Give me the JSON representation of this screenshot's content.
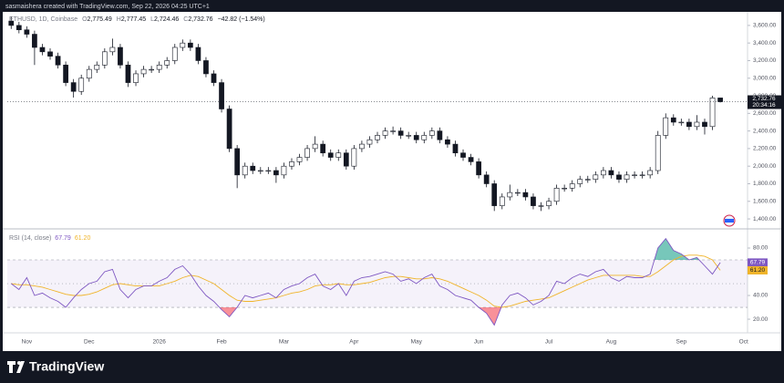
{
  "header": {
    "credit": "sasmaishera created with TradingView.com, Sep 22, 2026 04:25 UTC+1"
  },
  "chart_data": [
    {
      "type": "candlestick",
      "symbol": "ETHUSD, 1D, Coinbase",
      "legend": [
        {
          "key": "O",
          "value": "2,775.49"
        },
        {
          "key": "H",
          "value": "2,777.45"
        },
        {
          "key": "L",
          "value": "2,724.46"
        },
        {
          "key": "C",
          "value": "2,732.76"
        }
      ],
      "change": "−42.82 (−1.54%)",
      "categories": [
        null,
        null,
        "Nov",
        null,
        null,
        null,
        null,
        null,
        null,
        null,
        "Dec",
        null,
        null,
        null,
        null,
        null,
        null,
        null,
        null,
        "2026",
        null,
        null,
        null,
        null,
        null,
        null,
        null,
        "Feb",
        null,
        null,
        null,
        null,
        null,
        null,
        null,
        "Mar",
        null,
        null,
        null,
        null,
        null,
        null,
        null,
        null,
        "Apr",
        null,
        null,
        null,
        null,
        null,
        null,
        null,
        "May",
        null,
        null,
        null,
        null,
        null,
        null,
        null,
        "Jun",
        null,
        null,
        null,
        null,
        null,
        null,
        null,
        null,
        "Jul",
        null,
        null,
        null,
        null,
        null,
        null,
        null,
        "Aug",
        null,
        null,
        null,
        null,
        null,
        null,
        null,
        null,
        "Sep",
        null,
        null,
        null,
        null,
        null,
        null,
        null,
        "Oct"
      ],
      "ohlc": [
        [
          3650,
          3700,
          3560,
          3600
        ],
        [
          3600,
          3640,
          3510,
          3550
        ],
        [
          3550,
          3590,
          3460,
          3500
        ],
        [
          3500,
          3540,
          3150,
          3350
        ],
        [
          3350,
          3390,
          3260,
          3300
        ],
        [
          3300,
          3340,
          3210,
          3250
        ],
        [
          3250,
          3290,
          3110,
          3150
        ],
        [
          3150,
          3190,
          2910,
          2950
        ],
        [
          2950,
          2990,
          2780,
          2850
        ],
        [
          2850,
          3040,
          2810,
          3000
        ],
        [
          3000,
          3140,
          2960,
          3100
        ],
        [
          3100,
          3190,
          3060,
          3150
        ],
        [
          3150,
          3340,
          3110,
          3300
        ],
        [
          3300,
          3450,
          3260,
          3350
        ],
        [
          3350,
          3390,
          3110,
          3150
        ],
        [
          3150,
          3190,
          2900,
          2950
        ],
        [
          2950,
          3090,
          2910,
          3050
        ],
        [
          3050,
          3140,
          3010,
          3100
        ],
        [
          3100,
          3140,
          3060,
          3100
        ],
        [
          3100,
          3190,
          3060,
          3150
        ],
        [
          3150,
          3240,
          3110,
          3200
        ],
        [
          3200,
          3390,
          3160,
          3350
        ],
        [
          3350,
          3440,
          3310,
          3400
        ],
        [
          3400,
          3440,
          3310,
          3350
        ],
        [
          3350,
          3390,
          3160,
          3200
        ],
        [
          3200,
          3240,
          3010,
          3050
        ],
        [
          3050,
          3090,
          2910,
          2950
        ],
        [
          2950,
          2990,
          2610,
          2650
        ],
        [
          2650,
          2690,
          2160,
          2200
        ],
        [
          2200,
          2240,
          1750,
          1900
        ],
        [
          1900,
          2040,
          1860,
          2000
        ],
        [
          2000,
          2040,
          1910,
          1950
        ],
        [
          1950,
          1990,
          1910,
          1950
        ],
        [
          1950,
          1990,
          1910,
          1950
        ],
        [
          1950,
          1990,
          1810,
          1900
        ],
        [
          1900,
          2040,
          1860,
          2000
        ],
        [
          2000,
          2090,
          1960,
          2050
        ],
        [
          2050,
          2140,
          2010,
          2100
        ],
        [
          2100,
          2240,
          2060,
          2200
        ],
        [
          2200,
          2340,
          2160,
          2250
        ],
        [
          2250,
          2290,
          2110,
          2150
        ],
        [
          2150,
          2190,
          2060,
          2100
        ],
        [
          2100,
          2190,
          2060,
          2150
        ],
        [
          2150,
          2190,
          1960,
          2000
        ],
        [
          2000,
          2240,
          1960,
          2200
        ],
        [
          2200,
          2290,
          2160,
          2250
        ],
        [
          2250,
          2340,
          2210,
          2300
        ],
        [
          2300,
          2390,
          2260,
          2350
        ],
        [
          2350,
          2440,
          2310,
          2400
        ],
        [
          2400,
          2450,
          2360,
          2400
        ],
        [
          2400,
          2440,
          2310,
          2350
        ],
        [
          2350,
          2390,
          2310,
          2350
        ],
        [
          2350,
          2390,
          2260,
          2300
        ],
        [
          2300,
          2390,
          2260,
          2350
        ],
        [
          2350,
          2440,
          2310,
          2400
        ],
        [
          2400,
          2440,
          2260,
          2300
        ],
        [
          2300,
          2340,
          2210,
          2250
        ],
        [
          2250,
          2290,
          2110,
          2150
        ],
        [
          2150,
          2190,
          2060,
          2100
        ],
        [
          2100,
          2140,
          2010,
          2050
        ],
        [
          2050,
          2090,
          1860,
          1900
        ],
        [
          1900,
          1940,
          1760,
          1800
        ],
        [
          1800,
          1840,
          1490,
          1550
        ],
        [
          1550,
          1690,
          1510,
          1650
        ],
        [
          1650,
          1790,
          1610,
          1700
        ],
        [
          1700,
          1740,
          1660,
          1700
        ],
        [
          1700,
          1740,
          1610,
          1650
        ],
        [
          1650,
          1690,
          1510,
          1550
        ],
        [
          1550,
          1590,
          1490,
          1550
        ],
        [
          1550,
          1640,
          1510,
          1600
        ],
        [
          1600,
          1790,
          1560,
          1750
        ],
        [
          1750,
          1790,
          1710,
          1750
        ],
        [
          1750,
          1840,
          1710,
          1800
        ],
        [
          1800,
          1890,
          1760,
          1850
        ],
        [
          1850,
          1890,
          1810,
          1850
        ],
        [
          1850,
          1940,
          1810,
          1900
        ],
        [
          1900,
          1990,
          1860,
          1950
        ],
        [
          1950,
          1990,
          1860,
          1900
        ],
        [
          1900,
          1940,
          1810,
          1850
        ],
        [
          1850,
          1940,
          1810,
          1900
        ],
        [
          1900,
          1940,
          1860,
          1900
        ],
        [
          1900,
          1940,
          1860,
          1900
        ],
        [
          1900,
          1990,
          1860,
          1950
        ],
        [
          1950,
          2400,
          1910,
          2350
        ],
        [
          2350,
          2600,
          2310,
          2550
        ],
        [
          2550,
          2590,
          2460,
          2500
        ],
        [
          2500,
          2540,
          2460,
          2500
        ],
        [
          2500,
          2540,
          2410,
          2450
        ],
        [
          2450,
          2580,
          2410,
          2500
        ],
        [
          2500,
          2540,
          2360,
          2450
        ],
        [
          2450,
          2800,
          2410,
          2775.49
        ],
        [
          2775.49,
          2777.45,
          2724.46,
          2732.76
        ],
        null,
        null,
        null
      ],
      "up_color": "#ffffff",
      "down_color": "#131722",
      "ylim": [
        1297,
        3744
      ],
      "yticks": [
        {
          "value": 1400,
          "label": "1,400.00"
        },
        {
          "value": 1600,
          "label": "1,600.00"
        },
        {
          "value": 1800,
          "label": "1,800.00"
        },
        {
          "value": 2000,
          "label": "2,000.00"
        },
        {
          "value": 2200,
          "label": "2,200.00"
        },
        {
          "value": 2400,
          "label": "2,400.00"
        },
        {
          "value": 2600,
          "label": "2,600.00"
        },
        {
          "value": 2800,
          "label": "2,800.00"
        },
        {
          "value": 3000,
          "label": "3,000.00"
        },
        {
          "value": 3200,
          "label": "3,200.00"
        },
        {
          "value": 3400,
          "label": "3,400.00"
        },
        {
          "value": 3600,
          "label": "3,600.00"
        }
      ],
      "last_price": {
        "label": "2,732.76",
        "countdown": "20:34:16"
      }
    },
    {
      "type": "rsi",
      "title": "RSI (14, close)",
      "series": [
        {
          "color": "#7e57c2",
          "value_label": "67.79",
          "values": [
            50,
            45,
            55,
            40,
            42,
            38,
            35,
            30,
            38,
            45,
            50,
            52,
            60,
            62,
            45,
            38,
            45,
            48,
            48,
            52,
            55,
            62,
            65,
            58,
            48,
            40,
            35,
            28,
            22,
            30,
            40,
            38,
            40,
            42,
            38,
            45,
            48,
            50,
            55,
            58,
            48,
            45,
            50,
            40,
            52,
            55,
            56,
            58,
            60,
            58,
            52,
            54,
            50,
            55,
            58,
            48,
            45,
            40,
            38,
            36,
            30,
            25,
            15,
            32,
            40,
            42,
            38,
            32,
            35,
            40,
            52,
            50,
            55,
            58,
            56,
            60,
            62,
            55,
            52,
            56,
            55,
            55,
            58,
            80,
            88,
            78,
            75,
            70,
            72,
            65,
            58,
            67.79,
            null,
            null,
            null
          ]
        },
        {
          "color": "#f0b429",
          "value_label": "61.20",
          "values": [
            50,
            49,
            49,
            48,
            47,
            45,
            43,
            41,
            40,
            40,
            41,
            43,
            46,
            49,
            50,
            49,
            48,
            48,
            48,
            48,
            50,
            52,
            55,
            57,
            56,
            53,
            50,
            45,
            40,
            36,
            35,
            35,
            36,
            37,
            38,
            40,
            42,
            43,
            45,
            48,
            49,
            49,
            50,
            49,
            49,
            50,
            51,
            53,
            55,
            56,
            56,
            55,
            54,
            54,
            55,
            54,
            52,
            49,
            46,
            43,
            40,
            36,
            31,
            30,
            31,
            33,
            35,
            36,
            37,
            38,
            41,
            44,
            47,
            50,
            53,
            55,
            57,
            57,
            57,
            57,
            57,
            56,
            56,
            60,
            65,
            70,
            73,
            74,
            74,
            73,
            70,
            61.2,
            null,
            null,
            null
          ]
        }
      ],
      "ylim": [
        8.5,
        94.6
      ],
      "yticks": [
        {
          "value": 20,
          "label": "20.00"
        },
        {
          "value": 40,
          "label": "40.00"
        },
        {
          "value": 60,
          "label": "60.00"
        },
        {
          "value": 80,
          "label": "80.00"
        }
      ],
      "bands": [
        70,
        50,
        30
      ]
    }
  ],
  "footer": {
    "brand": "TradingView"
  }
}
